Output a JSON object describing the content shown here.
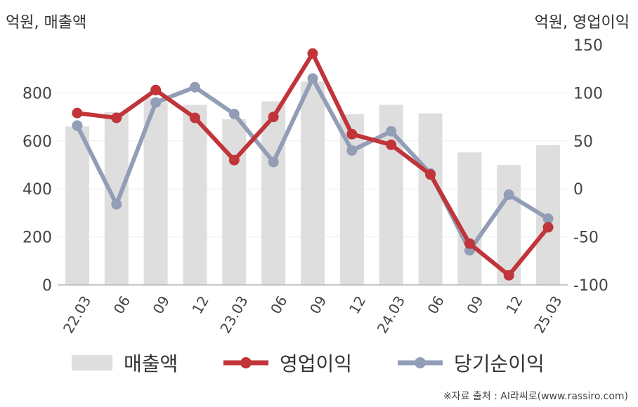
{
  "chart_data": {
    "type": "bar+line",
    "units": {
      "left": "억원, 매출액",
      "right": "억원, 영업이익"
    },
    "categories": [
      "22.03",
      "06",
      "09",
      "12",
      "23.03",
      "06",
      "09",
      "12",
      "24.03",
      "06",
      "09",
      "12",
      "25.03"
    ],
    "series": [
      {
        "name": "매출액",
        "kind": "bar",
        "axis": "left",
        "color": "#dedede",
        "values": [
          660,
          720,
          780,
          750,
          690,
          765,
          848,
          712,
          750,
          715,
          552,
          500,
          582
        ]
      },
      {
        "name": "영업이익",
        "kind": "line",
        "axis": "right",
        "color": "#c0343a",
        "values": [
          79,
          74,
          103,
          74,
          30,
          75,
          141,
          57,
          46,
          15,
          -57,
          -90,
          -40
        ]
      },
      {
        "name": "당기순이익",
        "kind": "line",
        "axis": "right",
        "color": "#929db6",
        "values": [
          66,
          -16,
          90,
          106,
          78,
          28,
          115,
          40,
          60,
          16,
          -64,
          -6,
          -31
        ]
      }
    ],
    "left_axis": {
      "min": 0,
      "max": 1000,
      "ticks": [
        0,
        200,
        400,
        600,
        800
      ]
    },
    "right_axis": {
      "min": -100,
      "max": 150,
      "ticks": [
        -100,
        -50,
        0,
        50,
        100,
        150
      ]
    },
    "grid": true,
    "legend_position": "bottom"
  },
  "source": "※자료 출처 : AI라씨로(www.rassiro.com)"
}
